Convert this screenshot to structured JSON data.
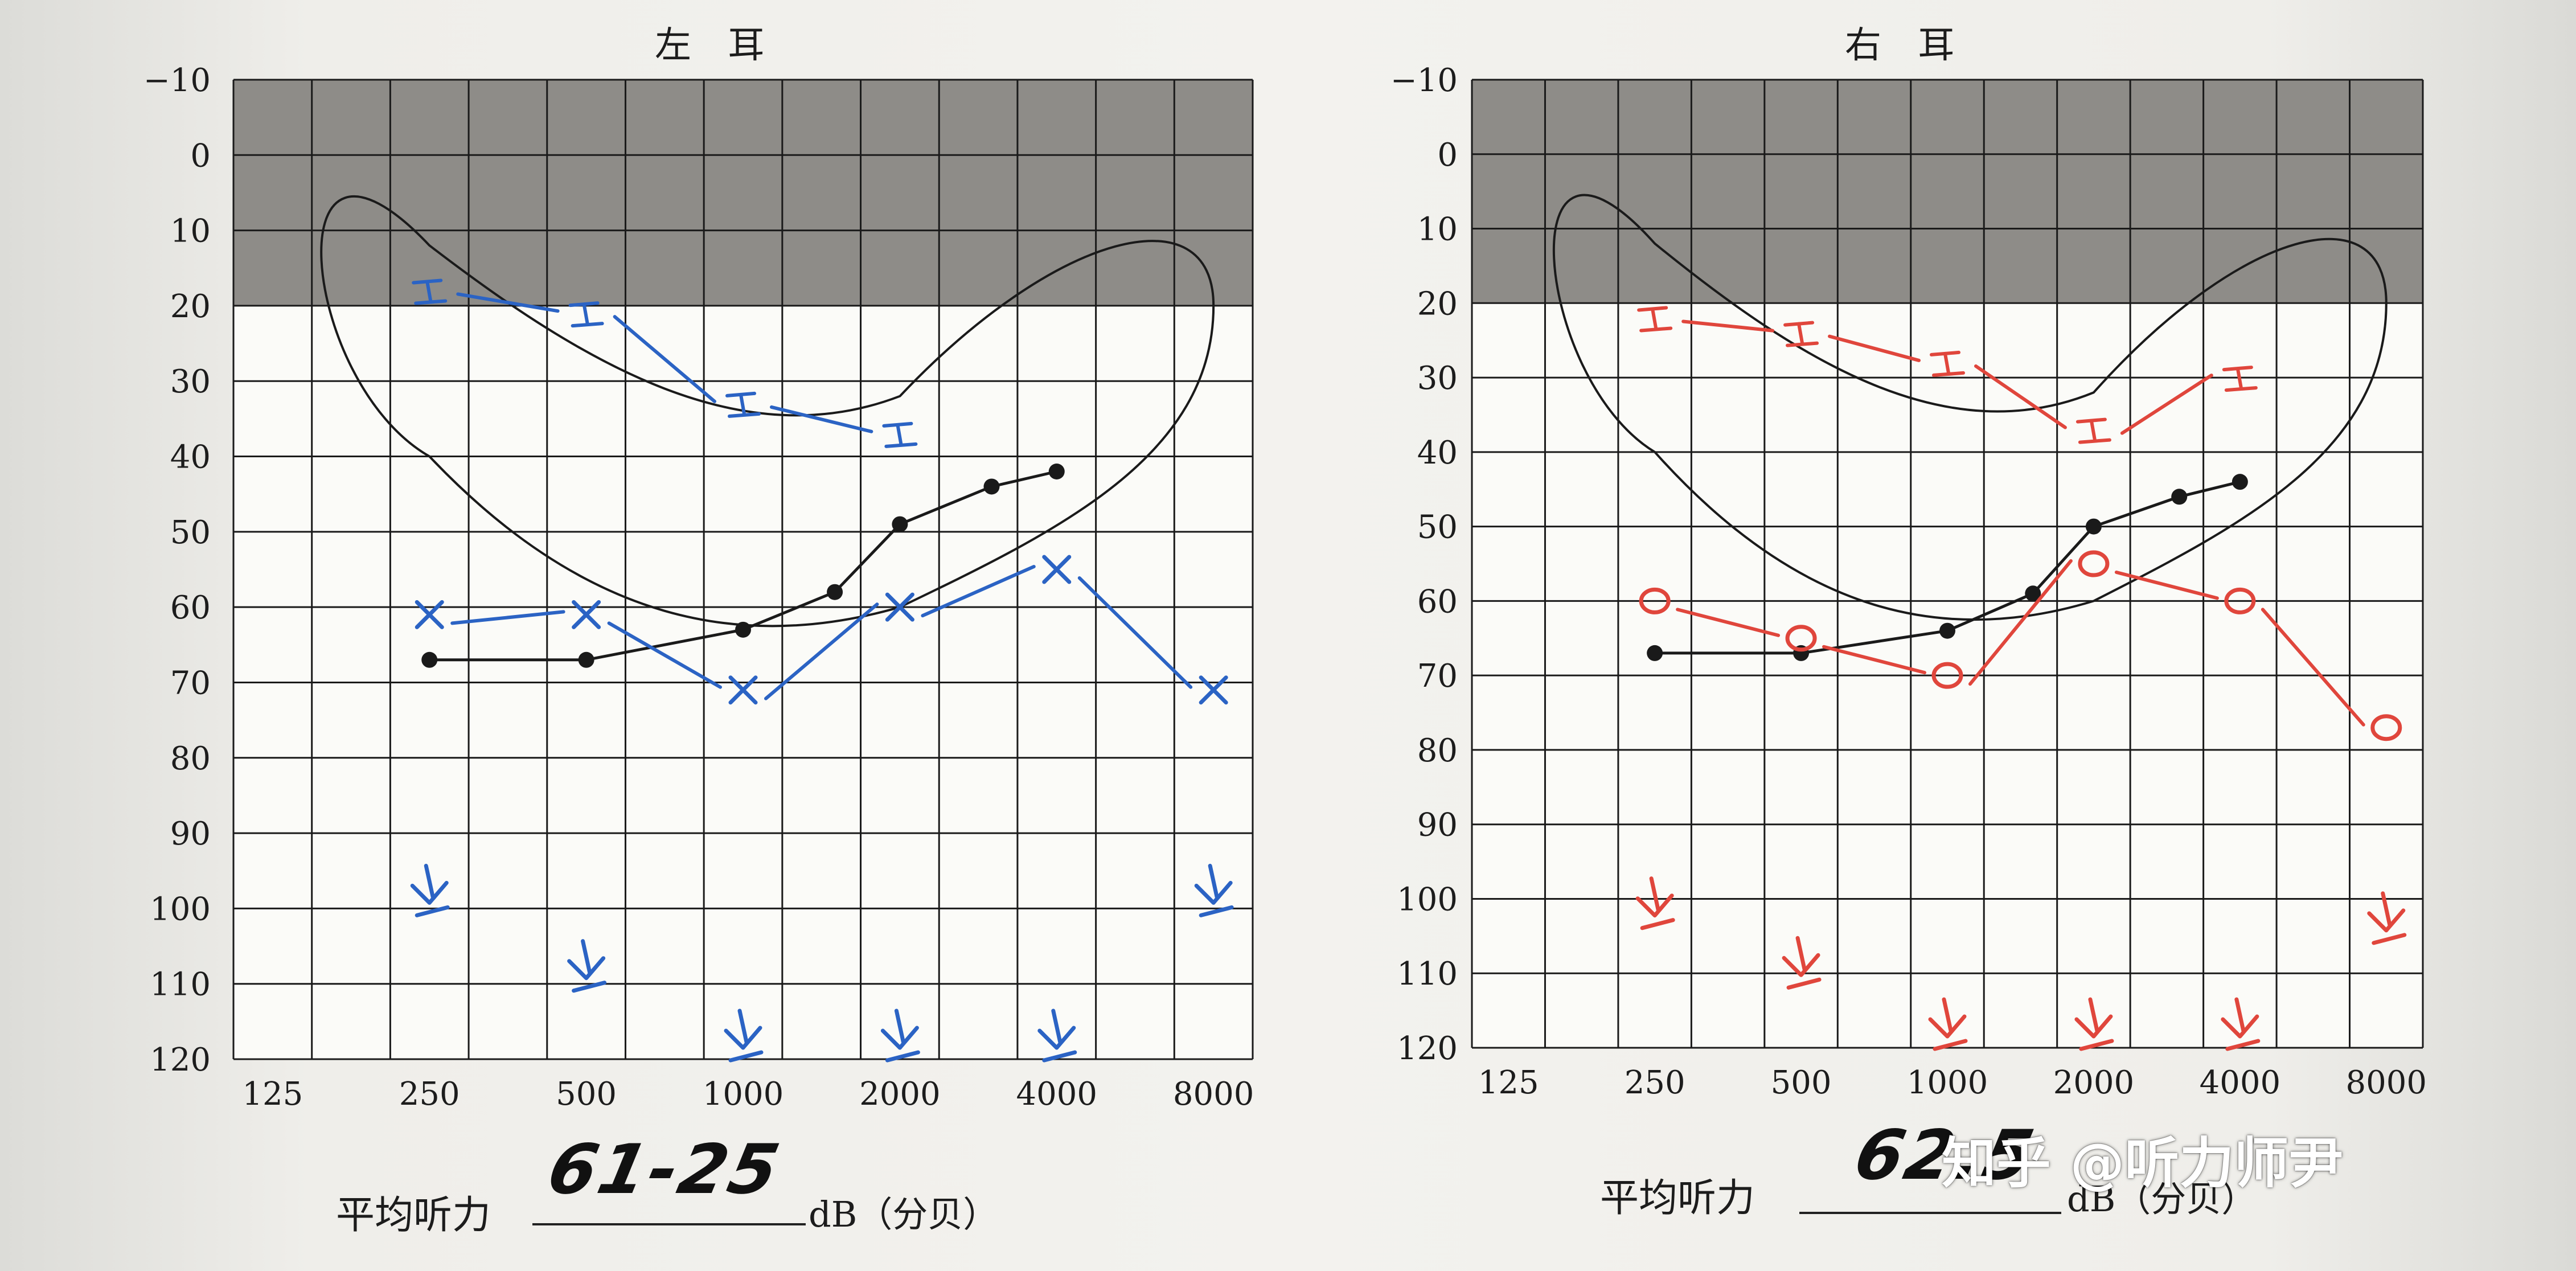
{
  "chart_data": [
    {
      "type": "line",
      "title": "左 耳",
      "y_ticks": [
        "−10",
        "0",
        "10",
        "20",
        "30",
        "40",
        "50",
        "60",
        "70",
        "80",
        "90",
        "100",
        "110",
        "120"
      ],
      "x_ticks": [
        "125",
        "250",
        "500",
        "1000",
        "2000",
        "4000",
        "8000"
      ],
      "ylim": [
        -10,
        120
      ],
      "y_direction": "down",
      "x_scale": "octave",
      "grid": true,
      "shaded_band_db": [
        -10,
        20
      ],
      "series": [
        {
          "kind": "dots",
          "color": "#1a1a1a",
          "x": [
            250,
            500,
            1000,
            1500,
            2000,
            3000,
            4000
          ],
          "y": [
            67,
            67,
            63,
            58,
            49,
            44,
            42
          ]
        },
        {
          "kind": "air-conduction",
          "color": "#2b63c4",
          "x": [
            250,
            500,
            1000,
            2000,
            4000,
            8000
          ],
          "y": [
            61,
            61,
            71,
            60,
            55,
            71
          ]
        },
        {
          "kind": "bone-conduction",
          "color": "#2b63c4",
          "x": [
            250,
            500,
            1000,
            2000
          ],
          "y": [
            18,
            21,
            33,
            37
          ]
        },
        {
          "kind": "no-response",
          "color": "#2b63c4",
          "x": [
            250,
            500,
            1000,
            2000,
            4000,
            8000
          ],
          "y": [
            100,
            110,
            120,
            120,
            120,
            100
          ]
        }
      ],
      "average": {
        "label": "平均听力",
        "value": "61-25",
        "unit": "dB（分贝）"
      }
    },
    {
      "type": "line",
      "title": "右 耳",
      "y_ticks": [
        "−10",
        "0",
        "10",
        "20",
        "30",
        "40",
        "50",
        "60",
        "70",
        "80",
        "90",
        "100",
        "110",
        "120"
      ],
      "x_ticks": [
        "125",
        "250",
        "500",
        "1000",
        "2000",
        "4000",
        "8000"
      ],
      "ylim": [
        -10,
        120
      ],
      "y_direction": "down",
      "x_scale": "octave",
      "grid": true,
      "shaded_band_db": [
        -10,
        20
      ],
      "series": [
        {
          "kind": "dots",
          "color": "#1a1a1a",
          "x": [
            250,
            500,
            1000,
            1500,
            2000,
            3000,
            4000
          ],
          "y": [
            67,
            67,
            64,
            59,
            50,
            46,
            44
          ]
        },
        {
          "kind": "air-conduction",
          "color": "#e0463c",
          "x": [
            250,
            500,
            1000,
            2000,
            4000,
            8000
          ],
          "y": [
            60,
            65,
            70,
            55,
            60,
            77
          ]
        },
        {
          "kind": "bone-conduction",
          "color": "#e0463c",
          "x": [
            250,
            500,
            1000,
            2000,
            4000
          ],
          "y": [
            22,
            24,
            28,
            37,
            30
          ]
        },
        {
          "kind": "no-response",
          "color": "#e0463c",
          "x": [
            250,
            500,
            1000,
            2000,
            4000,
            8000
          ],
          "y": [
            103,
            111,
            120,
            120,
            120,
            105
          ]
        }
      ],
      "average": {
        "label": "平均听力",
        "value": "62.5",
        "unit": "dB（分贝）"
      }
    }
  ],
  "watermark": "知乎 @听力师尹"
}
